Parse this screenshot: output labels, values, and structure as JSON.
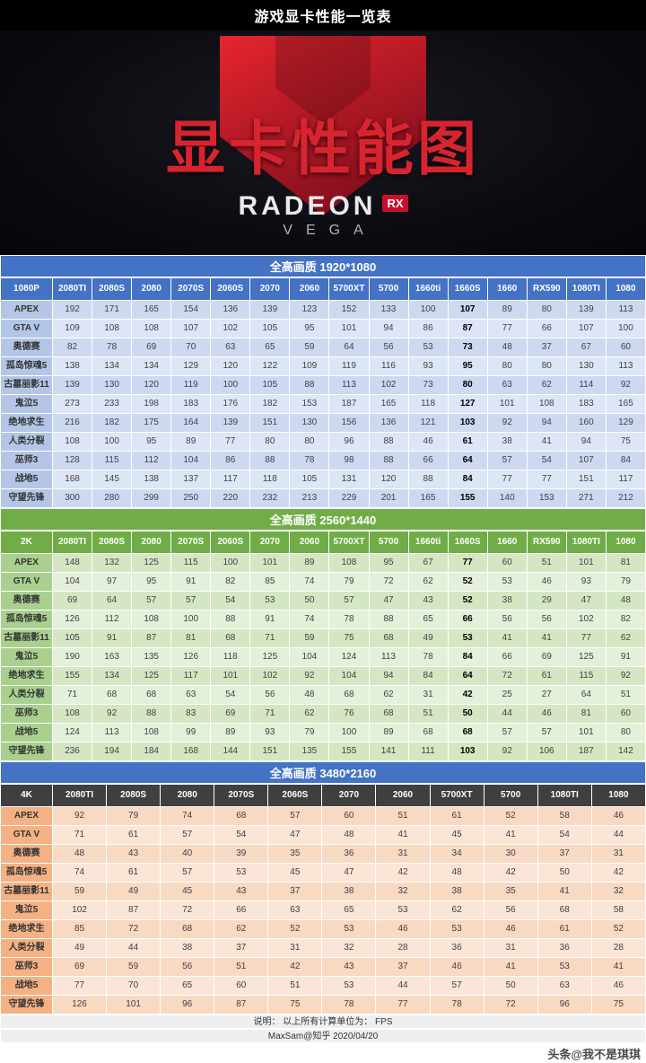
{
  "page_title": "游戏显卡性能一览表",
  "hero": {
    "logo_icon": "radeon-r-logo",
    "title": "显卡性能图",
    "brand": "RADEON",
    "brand_badge": "RX",
    "brand_sub": "VEGA"
  },
  "colors": {
    "blue_accent": "#4472c4",
    "green_accent": "#70ad47",
    "dark_header": "#3f3f3f",
    "red_accent": "#d8242f",
    "rx_badge_red": "#c8102e"
  },
  "footer": {
    "note": "说明：  以上所有计算单位为：  FPS",
    "credit": "MaxSam@知乎 2020/04/20",
    "watermark": "头条@我不是琪琪"
  },
  "chart_data": [
    {
      "type": "table",
      "title": "全高画质 1920*1080",
      "corner_label": "1080P",
      "unit": "FPS",
      "highlight_column": "1660S",
      "columns": [
        "2080TI",
        "2080S",
        "2080",
        "2070S",
        "2060S",
        "2070",
        "2060",
        "5700XT",
        "5700",
        "1660ti",
        "1660S",
        "1660",
        "RX590",
        "1080TI",
        "1080"
      ],
      "rows": [
        {
          "game": "APEX",
          "values": [
            192,
            171,
            165,
            154,
            136,
            139,
            123,
            152,
            133,
            100,
            107,
            89,
            80,
            139,
            113
          ]
        },
        {
          "game": "GTA V",
          "values": [
            109,
            108,
            108,
            107,
            102,
            105,
            95,
            101,
            94,
            86,
            87,
            77,
            66,
            107,
            100
          ]
        },
        {
          "game": "奥德赛",
          "values": [
            82,
            78,
            69,
            70,
            63,
            65,
            59,
            64,
            56,
            53,
            73,
            48,
            37,
            67,
            60
          ]
        },
        {
          "game": "孤岛惊魂5",
          "values": [
            138,
            134,
            134,
            129,
            120,
            122,
            109,
            119,
            116,
            93,
            95,
            80,
            80,
            130,
            113
          ]
        },
        {
          "game": "古墓丽影11",
          "values": [
            139,
            130,
            120,
            119,
            100,
            105,
            88,
            113,
            102,
            73,
            80,
            63,
            62,
            114,
            92
          ]
        },
        {
          "game": "鬼泣5",
          "values": [
            273,
            233,
            198,
            183,
            176,
            182,
            153,
            187,
            165,
            118,
            127,
            101,
            108,
            183,
            165
          ]
        },
        {
          "game": "绝地求生",
          "values": [
            216,
            182,
            175,
            164,
            139,
            151,
            130,
            156,
            136,
            121,
            103,
            92,
            94,
            160,
            129
          ]
        },
        {
          "game": "人类分裂",
          "values": [
            108,
            100,
            95,
            89,
            77,
            80,
            80,
            96,
            88,
            46,
            61,
            38,
            41,
            94,
            75
          ]
        },
        {
          "game": "巫师3",
          "values": [
            128,
            115,
            112,
            104,
            86,
            88,
            78,
            98,
            88,
            66,
            64,
            57,
            54,
            107,
            84
          ]
        },
        {
          "game": "战地5",
          "values": [
            168,
            145,
            138,
            137,
            117,
            118,
            105,
            131,
            120,
            88,
            84,
            77,
            77,
            151,
            117
          ]
        },
        {
          "game": "守望先锋",
          "values": [
            300,
            280,
            299,
            250,
            220,
            232,
            213,
            229,
            201,
            165,
            155,
            140,
            153,
            271,
            212
          ]
        }
      ]
    },
    {
      "type": "table",
      "title": "全高画质 2560*1440",
      "corner_label": "2K",
      "unit": "FPS",
      "highlight_column": "1660S",
      "columns": [
        "2080TI",
        "2080S",
        "2080",
        "2070S",
        "2060S",
        "2070",
        "2060",
        "5700XT",
        "5700",
        "1660ti",
        "1660S",
        "1660",
        "RX590",
        "1080TI",
        "1080"
      ],
      "rows": [
        {
          "game": "APEX",
          "values": [
            148,
            132,
            125,
            115,
            100,
            101,
            89,
            108,
            95,
            67,
            77,
            60,
            51,
            101,
            81
          ]
        },
        {
          "game": "GTA V",
          "values": [
            104,
            97,
            95,
            91,
            82,
            85,
            74,
            79,
            72,
            62,
            52,
            53,
            46,
            93,
            79
          ]
        },
        {
          "game": "奥德赛",
          "values": [
            69,
            64,
            57,
            57,
            54,
            53,
            50,
            57,
            47,
            43,
            52,
            38,
            29,
            47,
            48
          ]
        },
        {
          "game": "孤岛惊魂5",
          "values": [
            126,
            112,
            108,
            100,
            88,
            91,
            74,
            78,
            88,
            65,
            66,
            56,
            56,
            102,
            82
          ]
        },
        {
          "game": "古墓丽影11",
          "values": [
            105,
            91,
            87,
            81,
            68,
            71,
            59,
            75,
            68,
            49,
            53,
            41,
            41,
            77,
            62
          ]
        },
        {
          "game": "鬼泣5",
          "values": [
            190,
            163,
            135,
            126,
            118,
            125,
            104,
            124,
            113,
            78,
            84,
            66,
            69,
            125,
            91
          ]
        },
        {
          "game": "绝地求生",
          "values": [
            155,
            134,
            125,
            117,
            101,
            102,
            92,
            104,
            94,
            84,
            64,
            72,
            61,
            115,
            92
          ]
        },
        {
          "game": "人类分裂",
          "values": [
            71,
            68,
            68,
            63,
            54,
            56,
            48,
            68,
            62,
            31,
            42,
            25,
            27,
            64,
            51
          ]
        },
        {
          "game": "巫师3",
          "values": [
            108,
            92,
            88,
            83,
            69,
            71,
            62,
            76,
            68,
            51,
            50,
            44,
            46,
            81,
            60
          ]
        },
        {
          "game": "战地5",
          "values": [
            124,
            113,
            108,
            99,
            89,
            93,
            79,
            100,
            89,
            68,
            68,
            57,
            57,
            101,
            80
          ]
        },
        {
          "game": "守望先锋",
          "values": [
            236,
            194,
            184,
            168,
            144,
            151,
            135,
            155,
            141,
            111,
            103,
            92,
            106,
            187,
            142
          ]
        }
      ]
    },
    {
      "type": "table",
      "title": "全高画质 3480*2160",
      "corner_label": "4K",
      "unit": "FPS",
      "highlight_column": "",
      "columns": [
        "2080TI",
        "2080S",
        "2080",
        "2070S",
        "2060S",
        "2070",
        "2060",
        "5700XT",
        "5700",
        "1080TI",
        "1080"
      ],
      "rows": [
        {
          "game": "APEX",
          "values": [
            92,
            79,
            74,
            68,
            57,
            60,
            51,
            61,
            52,
            58,
            46
          ]
        },
        {
          "game": "GTA V",
          "values": [
            71,
            61,
            57,
            54,
            47,
            48,
            41,
            45,
            41,
            54,
            44
          ]
        },
        {
          "game": "奥德赛",
          "values": [
            48,
            43,
            40,
            39,
            35,
            36,
            31,
            34,
            30,
            37,
            31
          ]
        },
        {
          "game": "孤岛惊魂5",
          "values": [
            74,
            61,
            57,
            53,
            45,
            47,
            42,
            48,
            42,
            50,
            42
          ]
        },
        {
          "game": "古墓丽影11",
          "values": [
            59,
            49,
            45,
            43,
            37,
            38,
            32,
            38,
            35,
            41,
            32
          ]
        },
        {
          "game": "鬼泣5",
          "values": [
            102,
            87,
            72,
            66,
            63,
            65,
            53,
            62,
            56,
            68,
            58
          ]
        },
        {
          "game": "绝地求生",
          "values": [
            85,
            72,
            68,
            62,
            52,
            53,
            46,
            53,
            46,
            61,
            52
          ]
        },
        {
          "game": "人类分裂",
          "values": [
            49,
            44,
            38,
            37,
            31,
            32,
            28,
            36,
            31,
            36,
            28
          ]
        },
        {
          "game": "巫师3",
          "values": [
            69,
            59,
            56,
            51,
            42,
            43,
            37,
            46,
            41,
            53,
            41
          ]
        },
        {
          "game": "战地5",
          "values": [
            77,
            70,
            65,
            60,
            51,
            53,
            44,
            57,
            50,
            63,
            46
          ]
        },
        {
          "game": "守望先锋",
          "values": [
            126,
            101,
            96,
            87,
            75,
            78,
            77,
            78,
            72,
            96,
            75
          ]
        }
      ]
    }
  ]
}
